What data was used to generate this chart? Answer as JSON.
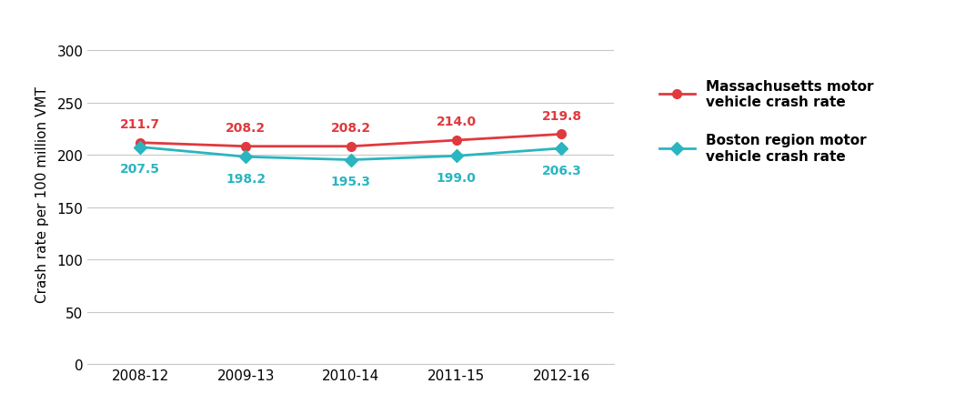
{
  "x_labels": [
    "2008-12",
    "2009-13",
    "2010-14",
    "2011-15",
    "2012-16"
  ],
  "x_values": [
    0,
    1,
    2,
    3,
    4
  ],
  "ma_values": [
    211.7,
    208.2,
    208.2,
    214.0,
    219.8
  ],
  "boston_values": [
    207.5,
    198.2,
    195.3,
    199.0,
    206.3
  ],
  "ma_color": "#e0393e",
  "boston_color": "#2ab5c0",
  "ma_label": "Massachusetts motor\nvehicle crash rate",
  "boston_label": "Boston region motor\nvehicle crash rate",
  "ylabel": "Crash rate per 100 million VMT",
  "ylim": [
    0,
    325
  ],
  "yticks": [
    0,
    50,
    100,
    150,
    200,
    250,
    300
  ],
  "marker_size": 7,
  "linewidth": 2.0,
  "annotation_fontsize": 10,
  "label_fontsize": 11,
  "tick_fontsize": 11,
  "background_color": "#ffffff",
  "grid_color": "#c8c8c8"
}
